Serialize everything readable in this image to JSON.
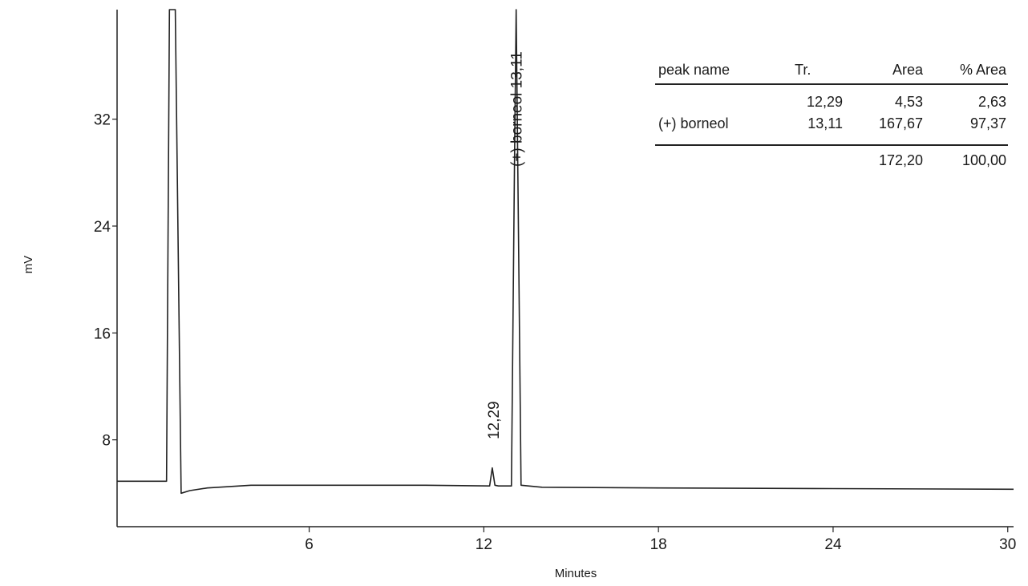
{
  "chart_data": {
    "type": "line",
    "title": "",
    "xlabel": "Minutes",
    "ylabel": "mV",
    "xlim": [
      -0.6,
      30.2
    ],
    "ylim": [
      1.5,
      40.2
    ],
    "x_ticks": [
      6,
      12,
      18,
      24,
      30
    ],
    "x_tick_labels": [
      "6",
      "12",
      "18",
      "24",
      "30"
    ],
    "y_ticks": [
      8,
      16,
      24,
      32
    ],
    "y_tick_labels": [
      "8",
      "16",
      "24",
      "32"
    ],
    "grid": false,
    "series": [
      {
        "values_note": "",
        "x": [
          -0.6,
          1.1,
          1.2,
          1.4,
          1.6,
          1.9,
          2.5,
          4.0,
          6.0,
          10.0,
          12.2,
          12.29,
          12.38,
          12.5,
          12.95,
          13.05,
          13.11,
          13.17,
          13.28,
          14.0,
          18.0,
          24.0,
          30.2
        ],
        "y": [
          4.9,
          4.9,
          40.2,
          40.2,
          4.0,
          4.2,
          4.4,
          4.6,
          4.6,
          4.6,
          4.55,
          5.9,
          4.6,
          4.55,
          4.55,
          28.0,
          40.2,
          28.0,
          4.6,
          4.45,
          4.4,
          4.35,
          4.3
        ]
      }
    ],
    "peak_labels": [
      {
        "x": 12.29,
        "text": "12,29"
      },
      {
        "x": 13.11,
        "text": "(+) borneol 13,11"
      }
    ],
    "table": {
      "headers": [
        "peak name",
        "Tr.",
        "Area",
        "% Area"
      ],
      "rows": [
        [
          "",
          "12,29",
          "4,53",
          "2,63"
        ],
        [
          "(+) borneol",
          "13,11",
          "167,67",
          "97,37"
        ]
      ],
      "total": [
        "",
        "",
        "172,20",
        "100,00"
      ]
    }
  }
}
